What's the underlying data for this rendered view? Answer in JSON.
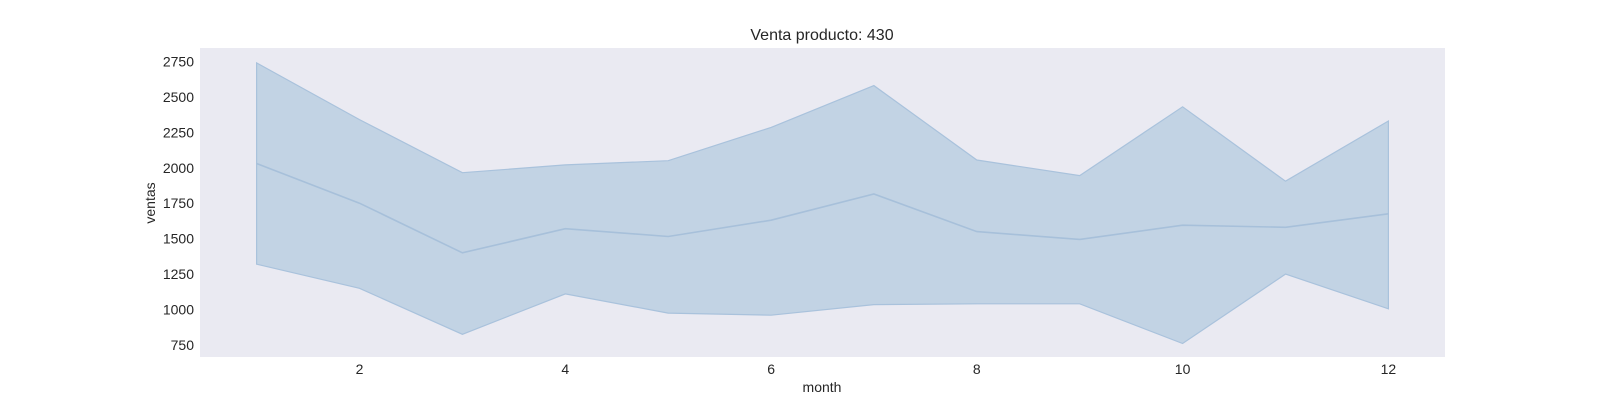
{
  "chart_data": {
    "type": "line",
    "title": "Venta producto: 430",
    "xlabel": "month",
    "ylabel": "ventas",
    "x": [
      1,
      2,
      3,
      4,
      5,
      6,
      7,
      8,
      9,
      10,
      11,
      12
    ],
    "xticks": [
      2,
      4,
      6,
      8,
      10,
      12
    ],
    "yticks": [
      750,
      1000,
      1250,
      1500,
      1750,
      2000,
      2250,
      2500,
      2750
    ],
    "xlim": [
      0.45,
      12.55
    ],
    "ylim": [
      665,
      2845
    ],
    "grid": false,
    "series": [
      {
        "values": [
          2030,
          1750,
          1400,
          1570,
          1515,
          1630,
          1815,
          1550,
          1495,
          1595,
          1580,
          1675
        ],
        "lower": [
          1320,
          1150,
          825,
          1110,
          975,
          960,
          1035,
          1040,
          1040,
          760,
          1250,
          1005
        ],
        "upper": [
          2740,
          2340,
          1965,
          2020,
          2050,
          2285,
          2580,
          2055,
          1945,
          2430,
          1905,
          2330
        ]
      }
    ],
    "colors": {
      "plot_bg": "#eaeaf2",
      "line": "#a7c0da",
      "band": "#c2d3e4",
      "band_edge": "#a9c2dc"
    }
  }
}
